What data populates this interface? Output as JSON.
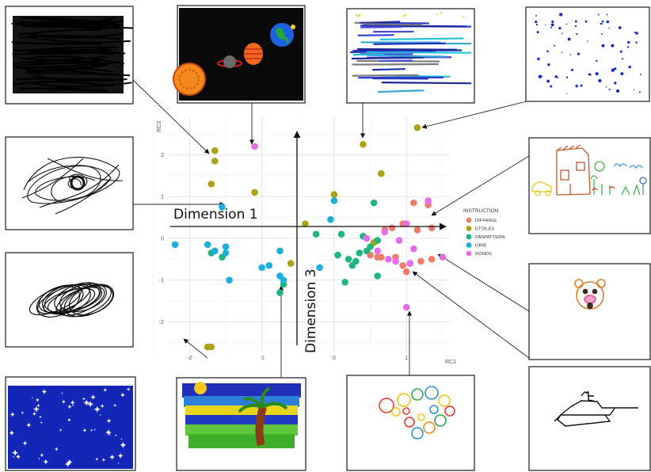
{
  "chart_data": {
    "type": "scatter",
    "title": "",
    "xlabel": "RC1",
    "ylabel": "RC3",
    "xlim": [
      -2.3,
      1.6
    ],
    "ylim": [
      -2.75,
      2.9
    ],
    "x_ticks": [
      "-2",
      "-1",
      "0",
      "1"
    ],
    "y_ticks": [
      "2",
      "1",
      "0",
      "-1",
      "-2"
    ],
    "grid": true,
    "legend_position": "right",
    "legend": {
      "title": "INSTRUCTION",
      "entries": [
        "DIFFANGL",
        "ETOILES",
        "FANPATTERN",
        "GRIB",
        "RONDS"
      ]
    },
    "series": [
      {
        "name": "DIFFANGL",
        "color": "#f07a6c",
        "x": [
          1.1,
          1.3,
          0.95,
          0.5,
          0.6,
          0.85,
          1.05,
          1.2,
          1.35,
          0.7,
          0.95,
          1.15,
          1.35,
          0.8,
          0.65,
          1.0
        ],
        "y": [
          0.85,
          0.8,
          0.35,
          -0.4,
          -0.45,
          -0.45,
          -0.6,
          -0.55,
          -0.5,
          0.2,
          -0.65,
          0.2,
          0.25,
          0.25,
          -0.45,
          -0.8
        ]
      },
      {
        "name": "ETOILES",
        "color": "#a8a317",
        "x": [
          -1.65,
          -1.65,
          -1.7,
          -1.1,
          -1.7,
          0.4,
          0.65,
          1.15,
          0.0,
          0.55,
          -0.4,
          -0.6,
          -1.75
        ],
        "y": [
          2.1,
          1.85,
          1.3,
          1.1,
          -2.6,
          2.25,
          1.55,
          2.65,
          1.05,
          -0.1,
          0.35,
          -0.6,
          -2.6
        ]
      },
      {
        "name": "FANPATTERN",
        "color": "#1fb580",
        "x": [
          -0.25,
          -1.7,
          -1.55,
          0.3,
          0.25,
          0.35,
          0.45,
          0.5,
          0.55,
          0.2,
          0.1,
          0.4,
          0.6,
          0.05,
          -0.7,
          -0.75,
          0.15,
          0.6
        ],
        "y": [
          0.1,
          -0.35,
          -0.45,
          -0.55,
          -0.65,
          -0.35,
          -0.3,
          -0.2,
          0.85,
          -0.5,
          0.1,
          0.05,
          -0.05,
          -0.4,
          -1.1,
          -1.3,
          -1.05,
          -0.9
        ]
      },
      {
        "name": "GRIB",
        "color": "#1eaede",
        "x": [
          -2.2,
          -1.75,
          -1.65,
          -1.5,
          -1.5,
          -1.45,
          -1.0,
          -0.9,
          -0.75,
          -0.7,
          -0.75,
          -0.2,
          -1.55,
          0.0,
          -0.05
        ],
        "y": [
          -0.15,
          -0.15,
          -0.3,
          -0.2,
          -0.35,
          -1.0,
          -0.7,
          -0.65,
          -0.9,
          -1.0,
          -0.3,
          -0.7,
          0.75,
          0.9,
          0.45
        ]
      },
      {
        "name": "RONDS",
        "color": "#e36ee8",
        "x": [
          -1.1,
          1.3,
          1.0,
          0.7,
          0.45,
          0.9,
          1.1,
          1.5,
          0.75,
          0.6,
          0.85,
          1.05,
          1.0
        ],
        "y": [
          2.2,
          0.9,
          0.35,
          0.15,
          0.0,
          -0.05,
          -0.25,
          -0.45,
          -0.5,
          -0.3,
          -0.55,
          -0.6,
          -1.65
        ]
      }
    ],
    "overlay_axes": [
      {
        "label": "Dimension 1",
        "direction": "horizontal"
      },
      {
        "label": "Dimension 3",
        "direction": "vertical"
      }
    ]
  },
  "thumbnails": [
    {
      "name": "thumb-black-scribble-fill",
      "kind": "scribble-fill"
    },
    {
      "name": "thumb-planets",
      "kind": "planets"
    },
    {
      "name": "thumb-blue-lines",
      "kind": "blue-lines"
    },
    {
      "name": "thumb-blue-dots",
      "kind": "blue-dots"
    },
    {
      "name": "thumb-black-tangle",
      "kind": "tangle"
    },
    {
      "name": "thumb-house-garden",
      "kind": "house"
    },
    {
      "name": "thumb-black-coil",
      "kind": "coil"
    },
    {
      "name": "thumb-bear-face",
      "kind": "bear"
    },
    {
      "name": "thumb-starry-blue",
      "kind": "starry"
    },
    {
      "name": "thumb-palm-landscape",
      "kind": "palm"
    },
    {
      "name": "thumb-colored-circles",
      "kind": "circles"
    },
    {
      "name": "thumb-tank",
      "kind": "tank"
    }
  ]
}
